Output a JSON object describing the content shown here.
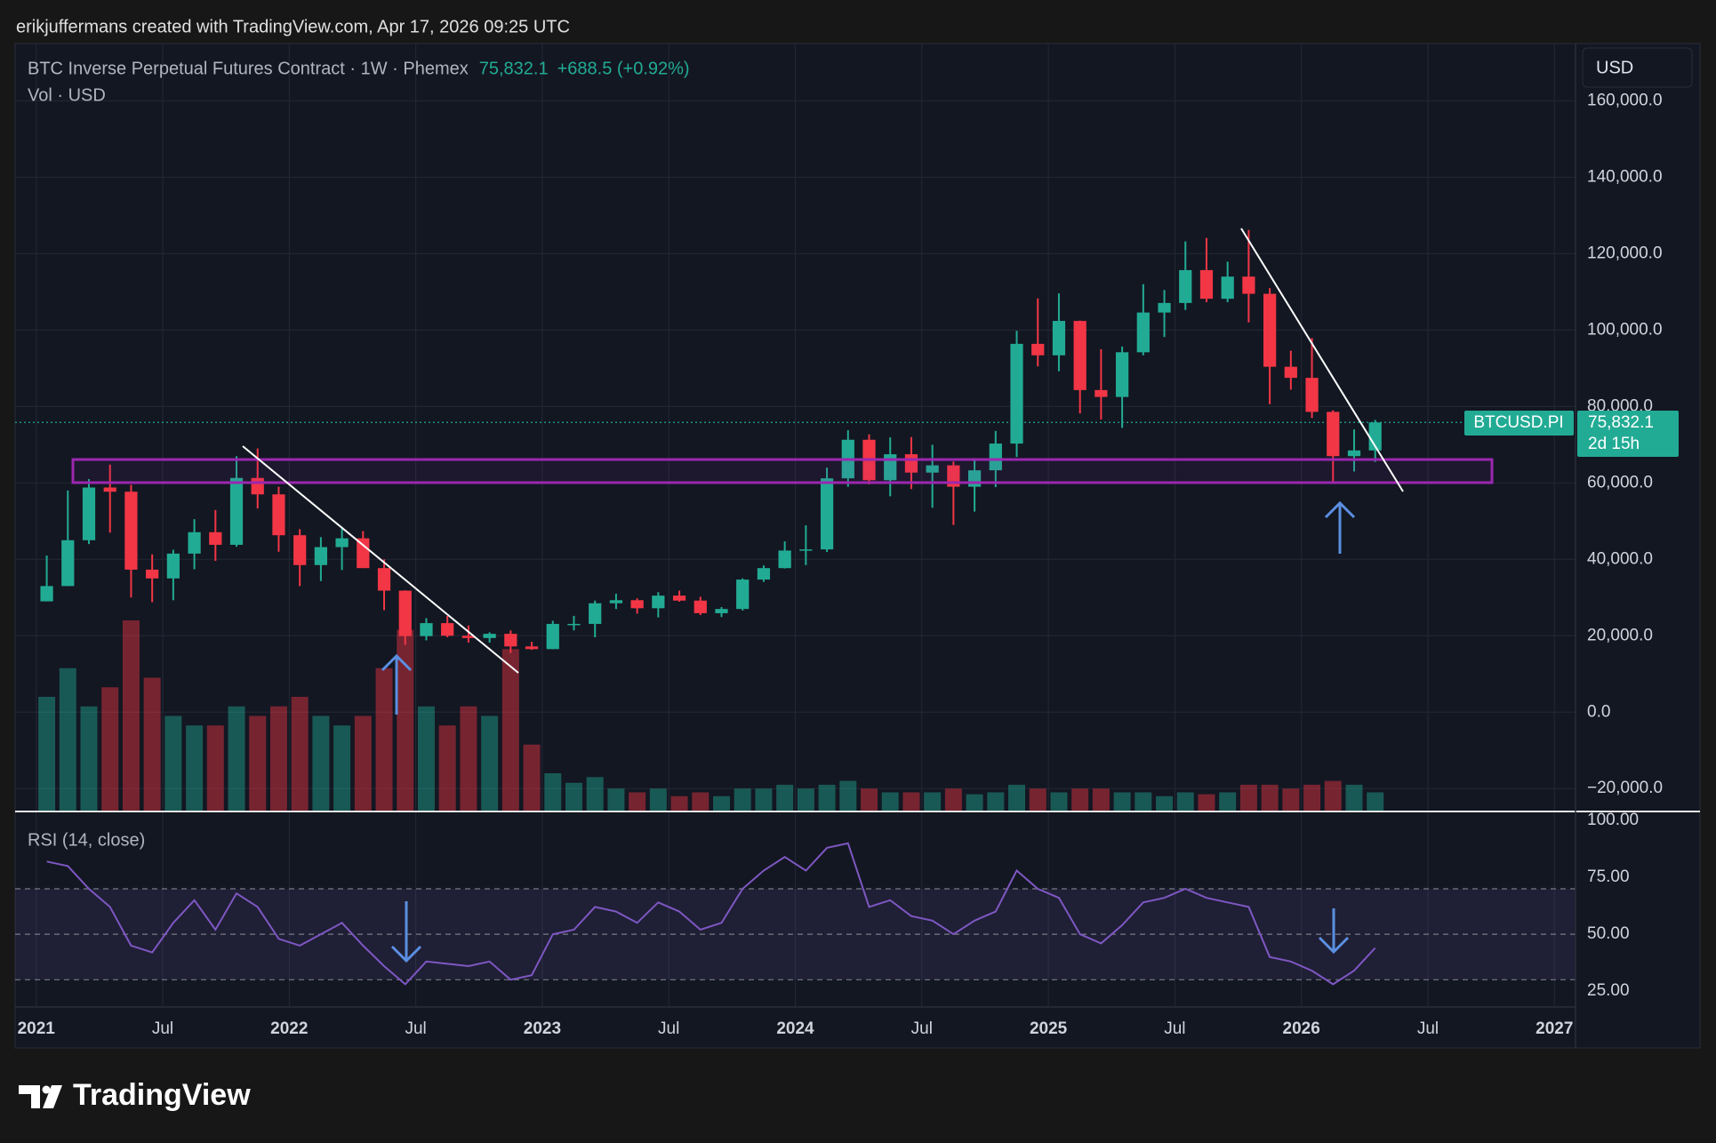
{
  "header": {
    "attribution": "erikjuffermans created with TradingView.com, Apr 17, 2026 09:25 UTC"
  },
  "chart_data": {
    "type": "candlestick",
    "title": "BTC Inverse Perpetual Futures Contract · 1W · Phemex",
    "last_price": {
      "value": 75832.1,
      "label": "75,832.1"
    },
    "change": "+688.5 (+0.92%)",
    "symbol": "BTCUSD.PI",
    "countdown": "2d 15h",
    "currency": "USD",
    "volume_label": "Vol · USD",
    "x": [
      "2021-01",
      "2021-02",
      "2021-03",
      "2021-04",
      "2021-05",
      "2021-06",
      "2021-07",
      "2021-08",
      "2021-09",
      "2021-10",
      "2021-11",
      "2021-12",
      "2022-01",
      "2022-02",
      "2022-03",
      "2022-04",
      "2022-05",
      "2022-06",
      "2022-07",
      "2022-08",
      "2022-09",
      "2022-10",
      "2022-11",
      "2022-12",
      "2023-01",
      "2023-02",
      "2023-03",
      "2023-04",
      "2023-05",
      "2023-06",
      "2023-07",
      "2023-08",
      "2023-09",
      "2023-10",
      "2023-11",
      "2023-12",
      "2024-01",
      "2024-02",
      "2024-03",
      "2024-04",
      "2024-05",
      "2024-06",
      "2024-07",
      "2024-08",
      "2024-09",
      "2024-10",
      "2024-11",
      "2024-12",
      "2025-01",
      "2025-02",
      "2025-03",
      "2025-04",
      "2025-05",
      "2025-06",
      "2025-07",
      "2025-08",
      "2025-09",
      "2025-10",
      "2025-11",
      "2025-12",
      "2026-01",
      "2026-02",
      "2026-03",
      "2026-04"
    ],
    "open": [
      29000,
      33000,
      45000,
      58800,
      57700,
      37300,
      35000,
      41500,
      47100,
      43800,
      61300,
      57000,
      46300,
      38500,
      43200,
      45500,
      37700,
      31800,
      19900,
      23300,
      20000,
      19400,
      20500,
      17200,
      16500,
      23100,
      23100,
      28500,
      29300,
      27200,
      30500,
      29200,
      25900,
      27000,
      34700,
      37700,
      42300,
      42600,
      61200,
      71300,
      60700,
      67500,
      62700,
      64600,
      59000,
      63300,
      70300,
      96400,
      93400,
      102400,
      84300,
      82500,
      94200,
      104600,
      107100,
      115700,
      108200,
      114000,
      109500,
      90400,
      87500,
      78600,
      67000,
      68500
    ],
    "high": [
      41000,
      58000,
      61000,
      64800,
      59500,
      41300,
      42500,
      50500,
      52900,
      67000,
      69000,
      59000,
      47900,
      45800,
      48200,
      47400,
      40000,
      31900,
      24600,
      25200,
      22700,
      20900,
      21400,
      18400,
      23900,
      25200,
      29200,
      31000,
      29800,
      31400,
      31800,
      30200,
      27500,
      35000,
      38400,
      44700,
      48900,
      64000,
      73800,
      72700,
      71900,
      72000,
      70000,
      65600,
      66500,
      73600,
      99800,
      108300,
      109600,
      102500,
      95000,
      95700,
      112000,
      110500,
      123200,
      124100,
      117900,
      126200,
      111000,
      94600,
      97900,
      79000,
      74000,
      76500
    ],
    "low": [
      29000,
      33000,
      44000,
      47000,
      30000,
      28800,
      29300,
      37400,
      39600,
      43300,
      53300,
      42000,
      33000,
      34300,
      37200,
      37700,
      26700,
      17600,
      18800,
      19600,
      18200,
      18200,
      15500,
      16300,
      16500,
      21400,
      19600,
      27000,
      25800,
      24800,
      28900,
      25400,
      24900,
      26600,
      34100,
      37600,
      38500,
      41900,
      59000,
      59600,
      56500,
      58400,
      53500,
      49000,
      52500,
      58900,
      66800,
      90500,
      89200,
      78200,
      76600,
      74400,
      93400,
      98200,
      105300,
      107300,
      107300,
      102000,
      80600,
      84400,
      77000,
      60000,
      63000,
      65500
    ],
    "close": [
      33000,
      45000,
      58800,
      57700,
      37300,
      35000,
      41500,
      47100,
      43800,
      61300,
      57000,
      46300,
      38500,
      43200,
      45500,
      37700,
      31800,
      19900,
      23300,
      20000,
      19400,
      20500,
      17200,
      16500,
      23100,
      23100,
      28500,
      29300,
      27200,
      30500,
      29200,
      25900,
      27000,
      34700,
      37700,
      42300,
      42600,
      61200,
      71300,
      60700,
      67500,
      62700,
      64600,
      59000,
      63300,
      70300,
      96400,
      93400,
      102400,
      84300,
      82500,
      94200,
      104600,
      107100,
      115700,
      108200,
      114000,
      109500,
      90400,
      87500,
      78600,
      67000,
      68500,
      75832.1
    ],
    "volume": [
      60,
      75,
      55,
      65,
      100,
      70,
      50,
      45,
      45,
      55,
      50,
      55,
      60,
      50,
      45,
      50,
      75,
      95,
      55,
      45,
      55,
      50,
      85,
      35,
      20,
      15,
      18,
      12,
      10,
      12,
      8,
      10,
      8,
      12,
      12,
      14,
      12,
      14,
      16,
      12,
      10,
      10,
      10,
      12,
      9,
      10,
      14,
      12,
      10,
      12,
      12,
      10,
      10,
      8,
      10,
      9,
      10,
      14,
      14,
      12,
      14,
      16,
      14,
      10
    ],
    "up_color": "#22ab94",
    "down_color": "#f23645",
    "xlim": [
      "2020-12",
      "2027-02"
    ],
    "xticks": [
      {
        "value": "2021-01",
        "label": "2021"
      },
      {
        "value": "2021-07",
        "label": "Jul"
      },
      {
        "value": "2022-01",
        "label": "2022"
      },
      {
        "value": "2022-07",
        "label": "Jul"
      },
      {
        "value": "2023-01",
        "label": "2023"
      },
      {
        "value": "2023-07",
        "label": "Jul"
      },
      {
        "value": "2024-01",
        "label": "2024"
      },
      {
        "value": "2024-07",
        "label": "Jul"
      },
      {
        "value": "2025-01",
        "label": "2025"
      },
      {
        "value": "2025-07",
        "label": "Jul"
      },
      {
        "value": "2026-01",
        "label": "2026"
      },
      {
        "value": "2026-07",
        "label": "Jul"
      },
      {
        "value": "2027-01",
        "label": "2027"
      }
    ],
    "ylim": [
      -26000,
      175000
    ],
    "yticks": [
      {
        "value": -20000,
        "label": "−20,000.0"
      },
      {
        "value": 0,
        "label": "0.0"
      },
      {
        "value": 20000,
        "label": "20,000.0"
      },
      {
        "value": 40000,
        "label": "40,000.0"
      },
      {
        "value": 60000,
        "label": "60,000.0"
      },
      {
        "value": 80000,
        "label": "80,000.0"
      },
      {
        "value": 100000,
        "label": "100,000.0"
      },
      {
        "value": 120000,
        "label": "120,000.0"
      },
      {
        "value": 140000,
        "label": "140,000.0"
      },
      {
        "value": 160000,
        "label": "160,000.0"
      }
    ],
    "grid": true,
    "rsi": {
      "title": "RSI (14, close)",
      "color": "#7e57c2",
      "values": [
        82,
        80,
        70,
        62,
        45,
        42,
        55,
        65,
        52,
        68,
        62,
        48,
        45,
        50,
        55,
        45,
        36,
        28,
        38,
        37,
        36,
        38,
        30,
        32,
        50,
        52,
        62,
        60,
        55,
        64,
        60,
        52,
        55,
        70,
        78,
        84,
        78,
        88,
        90,
        62,
        65,
        58,
        56,
        50,
        56,
        60,
        78,
        70,
        66,
        50,
        46,
        54,
        64,
        66,
        70,
        66,
        64,
        62,
        40,
        38,
        34,
        28,
        34,
        44
      ],
      "ylim": [
        18,
        104
      ],
      "yticks": [
        {
          "value": 25,
          "label": "25.00"
        },
        {
          "value": 50,
          "label": "50.00"
        },
        {
          "value": 75,
          "label": "75.00"
        },
        {
          "value": 100,
          "label": "100.00"
        }
      ],
      "levels": [
        30,
        50,
        70
      ]
    }
  },
  "footer": {
    "brand": "TradingView"
  }
}
